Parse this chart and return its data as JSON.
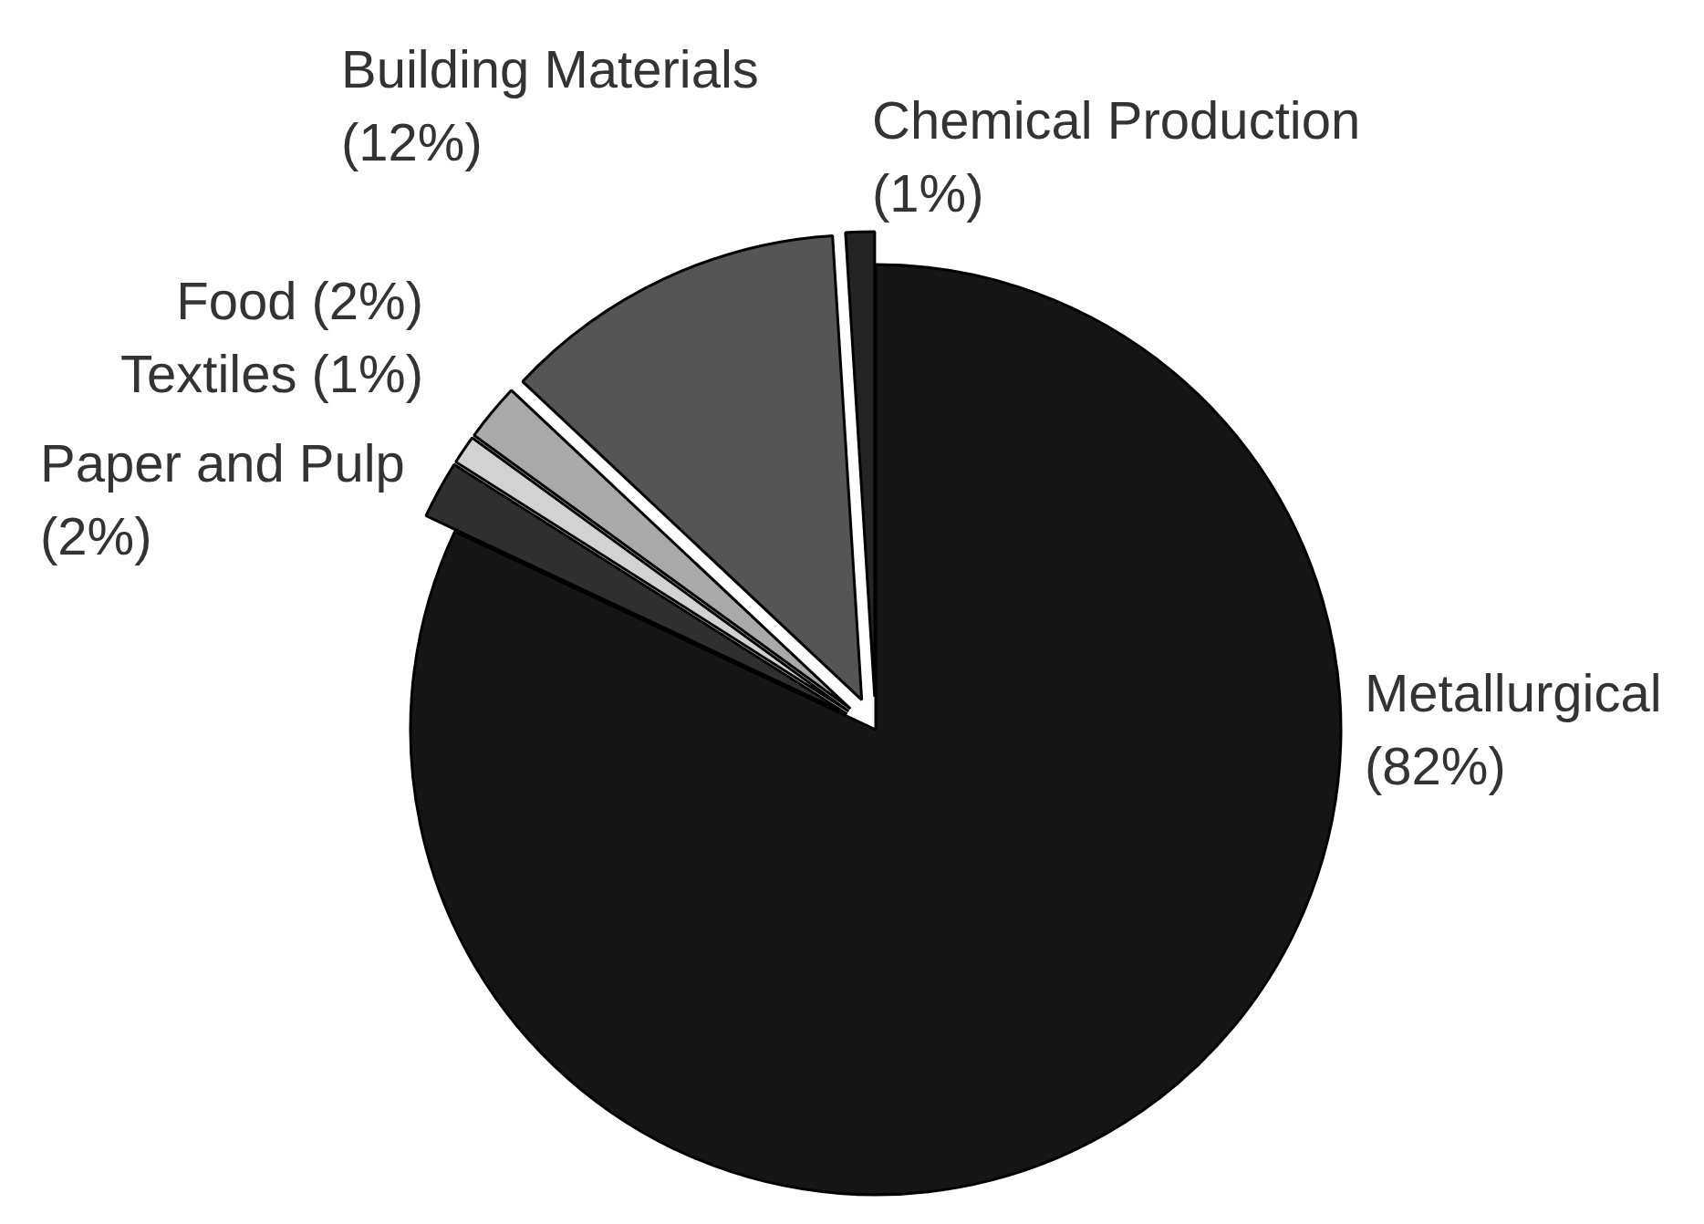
{
  "chart_data": {
    "type": "pie",
    "categories": [
      "Metallurgical",
      "Paper and Pulp",
      "Textiles",
      "Food",
      "Building Materials",
      "Chemical Production"
    ],
    "values": [
      82,
      2,
      1,
      2,
      12,
      1
    ],
    "colors": [
      "#151515",
      "#2f2f2f",
      "#d2d2d2",
      "#a9a9a9",
      "#555555",
      "#242424"
    ],
    "value_labels": [
      "(82%)",
      "(2%)",
      "(1%)",
      "(2%)",
      "(12%)",
      "(1%)"
    ]
  }
}
